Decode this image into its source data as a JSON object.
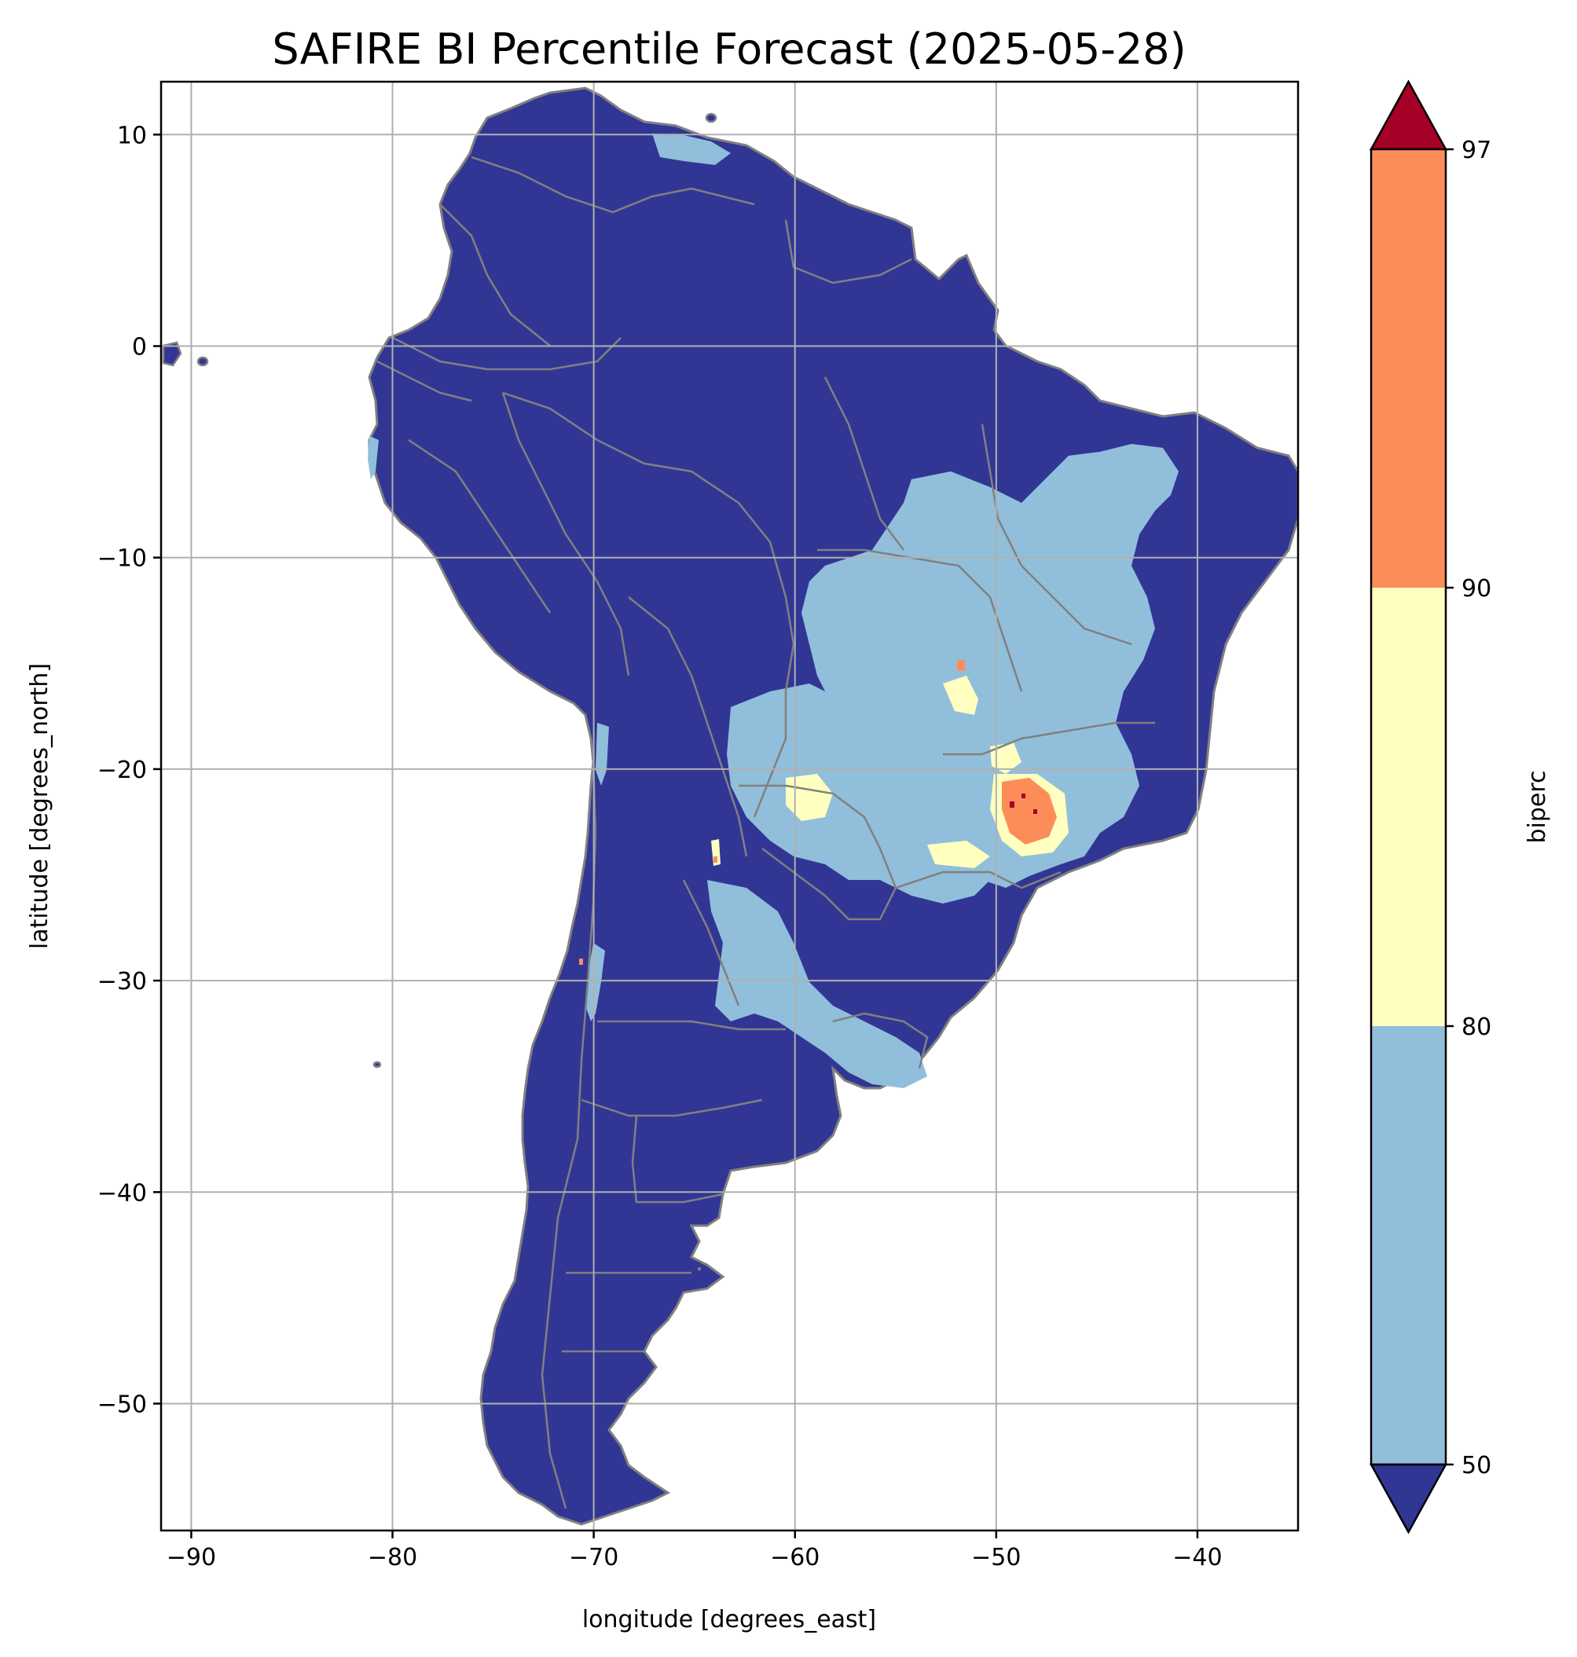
{
  "title": "SAFIRE BI Percentile Forecast (2025-05-28)",
  "xlabel": "longitude [degrees_east]",
  "ylabel": "latitude [degrees_north]",
  "colorbar": {
    "label": "biperc",
    "ticks": [
      "50",
      "80",
      "90",
      "97"
    ],
    "levels": [
      50,
      80,
      90,
      97
    ],
    "colors": {
      "under": "#313695",
      "b50_80": "#91bfdb",
      "b80_90": "#ffffbf",
      "b90_97": "#fc8d59",
      "over": "#a50026"
    },
    "extend": "both"
  },
  "chart_data": {
    "type": "heatmap",
    "title": "SAFIRE BI Percentile Forecast (2025-05-28)",
    "xlabel": "longitude [degrees_east]",
    "ylabel": "latitude [degrees_north]",
    "xlim": [
      -91.5,
      -35
    ],
    "ylim": [
      -56,
      12.5
    ],
    "xticks": [
      -90,
      -80,
      -70,
      -60,
      -50,
      -40
    ],
    "yticks": [
      10,
      0,
      -10,
      -20,
      -30,
      -40,
      -50
    ],
    "xtick_labels": [
      "−90",
      "−80",
      "−70",
      "−60",
      "−50",
      "−40"
    ],
    "ytick_labels": [
      "10",
      "0",
      "−10",
      "−20",
      "−30",
      "−40",
      "−50"
    ],
    "grid": true,
    "region": "South America",
    "regions_by_class": [
      {
        "class": "<50",
        "where": "most of the continent"
      },
      {
        "class": "50-80",
        "where": "central and eastern Brazil, Paraguay, northern Argentina, Uruguay border, Venezuela coast, Chile"
      },
      {
        "class": "80-90",
        "where": "patches in Paraguay/Bolivia, central Brazil, around -22 to -24 lat / -47 to -50 lon"
      },
      {
        "class": "90-97",
        "where": "São Paulo state area near -22 lat, -48 lon"
      },
      {
        "class": ">97",
        "where": "few cells near -21.5 lat, -48.5 lon"
      }
    ]
  }
}
